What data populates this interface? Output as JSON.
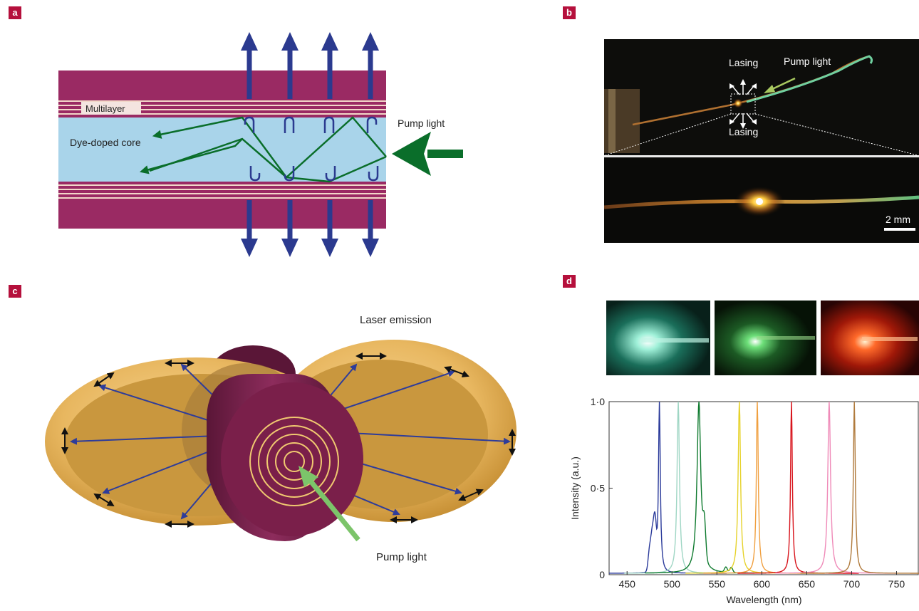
{
  "panels": {
    "a": {
      "tag": "a",
      "multilayer_label": "Multilayer",
      "core_label": "Dye-doped core",
      "pump_label": "Pump light"
    },
    "b": {
      "tag": "b",
      "lasing_top": "Lasing",
      "lasing_bottom": "Lasing",
      "pump_label": "Pump light",
      "scale_bar": "2 mm"
    },
    "c": {
      "tag": "c",
      "emission_label": "Laser emission",
      "pump_label": "Pump light"
    },
    "d": {
      "tag": "d"
    }
  },
  "colors": {
    "cladding": "#9a2a63",
    "core": "#a9d4ea",
    "arrow_blue": "#2b3a8f",
    "pump_green": "#0a6e2a",
    "tag": "#b5103c"
  },
  "chart_data": {
    "type": "line",
    "xlabel": "Wavelength (nm)",
    "ylabel": "Intensity (a.u.)",
    "xlim": [
      430,
      775
    ],
    "ylim": [
      0,
      1.0
    ],
    "x_ticks": [
      450,
      500,
      550,
      600,
      650,
      700,
      750
    ],
    "y_ticks": [
      0,
      0.5,
      1.0
    ],
    "y_tick_labels": [
      "0",
      "0·5",
      "1·0"
    ],
    "series": [
      {
        "color": "#2a3a9a",
        "peak": 486,
        "width": 1.2,
        "extra": [
          [
            478,
            0.19
          ],
          [
            481,
            0.27
          ],
          [
            475,
            0.12
          ]
        ]
      },
      {
        "color": "#9fd6c4",
        "peak": 507,
        "width": 1.6,
        "extra": []
      },
      {
        "color": "#0e7a2e",
        "peak": 530,
        "width": 2.5,
        "extra": [
          [
            566,
            0.03
          ],
          [
            560,
            0.03
          ],
          [
            536,
            0.2
          ]
        ]
      },
      {
        "color": "#e6d22a",
        "peak": 575,
        "width": 1.6,
        "extra": []
      },
      {
        "color": "#f0a040",
        "peak": 595,
        "width": 1.3,
        "extra": []
      },
      {
        "color": "#d8141c",
        "peak": 633,
        "width": 1.2,
        "extra": []
      },
      {
        "color": "#ef8ab8",
        "peak": 675,
        "width": 1.8,
        "extra": []
      },
      {
        "color": "#b07a3c",
        "peak": 703,
        "width": 1.3,
        "extra": []
      }
    ]
  }
}
